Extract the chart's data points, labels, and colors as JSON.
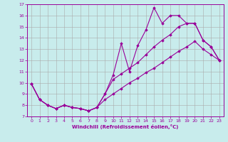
{
  "xlabel": "Windchill (Refroidissement éolien,°C)",
  "background_color": "#c8ecec",
  "line_color": "#990099",
  "grid_color": "#aaaaaa",
  "xlim": [
    -0.5,
    23.5
  ],
  "ylim": [
    7,
    17
  ],
  "xticks": [
    0,
    1,
    2,
    3,
    4,
    5,
    6,
    7,
    8,
    9,
    10,
    11,
    12,
    13,
    14,
    15,
    16,
    17,
    18,
    19,
    20,
    21,
    22,
    23
  ],
  "yticks": [
    7,
    8,
    9,
    10,
    11,
    12,
    13,
    14,
    15,
    16,
    17
  ],
  "line1_x": [
    0,
    1,
    2,
    3,
    4,
    5,
    6,
    7,
    8,
    9,
    10,
    11,
    12,
    13,
    14,
    15,
    16,
    17,
    18,
    19,
    20,
    21,
    22,
    23
  ],
  "line1_y": [
    9.9,
    8.5,
    8.0,
    7.7,
    8.0,
    7.8,
    7.7,
    7.5,
    7.8,
    9.0,
    10.7,
    13.5,
    11.0,
    13.3,
    14.7,
    16.7,
    15.3,
    16.0,
    16.0,
    15.3,
    15.3,
    13.8,
    13.2,
    12.0
  ],
  "line2_x": [
    0,
    1,
    2,
    3,
    4,
    5,
    6,
    7,
    8,
    9,
    10,
    11,
    12,
    13,
    14,
    15,
    16,
    17,
    18,
    19,
    20,
    21,
    22,
    23
  ],
  "line2_y": [
    9.9,
    8.5,
    8.0,
    7.7,
    8.0,
    7.8,
    7.7,
    7.5,
    7.8,
    9.0,
    10.3,
    10.8,
    11.3,
    11.8,
    12.5,
    13.2,
    13.8,
    14.3,
    15.0,
    15.3,
    15.3,
    13.8,
    13.2,
    12.0
  ],
  "line3_x": [
    0,
    1,
    2,
    3,
    4,
    5,
    6,
    7,
    8,
    9,
    10,
    11,
    12,
    13,
    14,
    15,
    16,
    17,
    18,
    19,
    20,
    21,
    22,
    23
  ],
  "line3_y": [
    9.9,
    8.5,
    8.0,
    7.7,
    8.0,
    7.8,
    7.7,
    7.5,
    7.8,
    8.5,
    9.0,
    9.5,
    10.0,
    10.4,
    10.9,
    11.3,
    11.8,
    12.3,
    12.8,
    13.2,
    13.7,
    13.0,
    12.5,
    12.0
  ]
}
